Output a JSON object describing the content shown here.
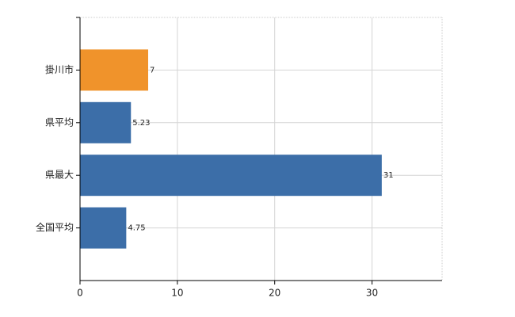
{
  "chart_data": {
    "type": "bar",
    "orientation": "horizontal",
    "categories": [
      "掛川市",
      "県平均",
      "県最大",
      "全国平均"
    ],
    "values": [
      7,
      5.23,
      31,
      4.75
    ],
    "colors": [
      "#f0932b",
      "#3c6ea8",
      "#3c6ea8",
      "#3c6ea8"
    ],
    "xlim": [
      0,
      37.2
    ],
    "xticks": [
      0,
      10,
      20,
      30
    ],
    "grid": true
  }
}
